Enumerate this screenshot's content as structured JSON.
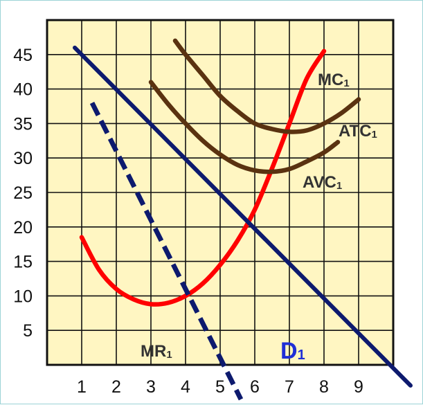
{
  "chart_data": {
    "type": "line",
    "x_ticks": [
      "1",
      "2",
      "3",
      "4",
      "5",
      "6",
      "7",
      "8",
      "9"
    ],
    "y_ticks": [
      "5",
      "10",
      "15",
      "20",
      "25",
      "30",
      "35",
      "40",
      "45"
    ],
    "xlim": [
      0,
      10
    ],
    "ylim": [
      0,
      50
    ],
    "grid": true,
    "colors": {
      "plot_background": "#fff6c2",
      "grid": "#111111",
      "MC": "#ff0000",
      "ATC": "#5a3210",
      "AVC": "#5a3210",
      "D": "#0d1a6e",
      "MR": "#0d1a6e"
    },
    "series": [
      {
        "name": "MC1",
        "base": "MC",
        "sub": "1",
        "x": [
          1.0,
          1.5,
          2.0,
          2.5,
          3.0,
          3.5,
          4.0,
          4.5,
          5.0,
          5.5,
          6.0,
          6.5,
          7.0,
          7.5,
          8.0
        ],
        "y": [
          18.5,
          13.8,
          11.0,
          9.5,
          8.8,
          9.0,
          10.0,
          11.8,
          14.5,
          18.0,
          22.5,
          28.5,
          35.0,
          41.5,
          45.5
        ]
      },
      {
        "name": "ATC1",
        "base": "ATC",
        "sub": "1",
        "x": [
          3.7,
          4.0,
          4.5,
          5.0,
          5.5,
          6.0,
          6.5,
          7.0,
          7.5,
          8.0,
          8.5,
          9.0
        ],
        "y": [
          47.0,
          45.0,
          42.0,
          39.0,
          36.8,
          35.0,
          34.2,
          33.8,
          34.0,
          35.0,
          36.5,
          38.5
        ]
      },
      {
        "name": "AVC1",
        "base": "AVC",
        "sub": "1",
        "x": [
          3.0,
          3.5,
          4.0,
          4.5,
          5.0,
          5.5,
          6.0,
          6.5,
          7.0,
          7.5,
          8.0,
          8.4
        ],
        "y": [
          41.0,
          37.8,
          35.0,
          32.5,
          30.5,
          29.0,
          28.2,
          28.0,
          28.4,
          29.5,
          30.8,
          32.3
        ]
      },
      {
        "name": "D1",
        "base": "D",
        "sub": "1",
        "x": [
          0.8,
          10.5
        ],
        "y": [
          46.0,
          -3.0
        ]
      },
      {
        "name": "MR1",
        "base": "MR",
        "sub": "1",
        "x": [
          1.3,
          5.6
        ],
        "y": [
          38.0,
          -5.0
        ],
        "dashed": true
      }
    ]
  }
}
